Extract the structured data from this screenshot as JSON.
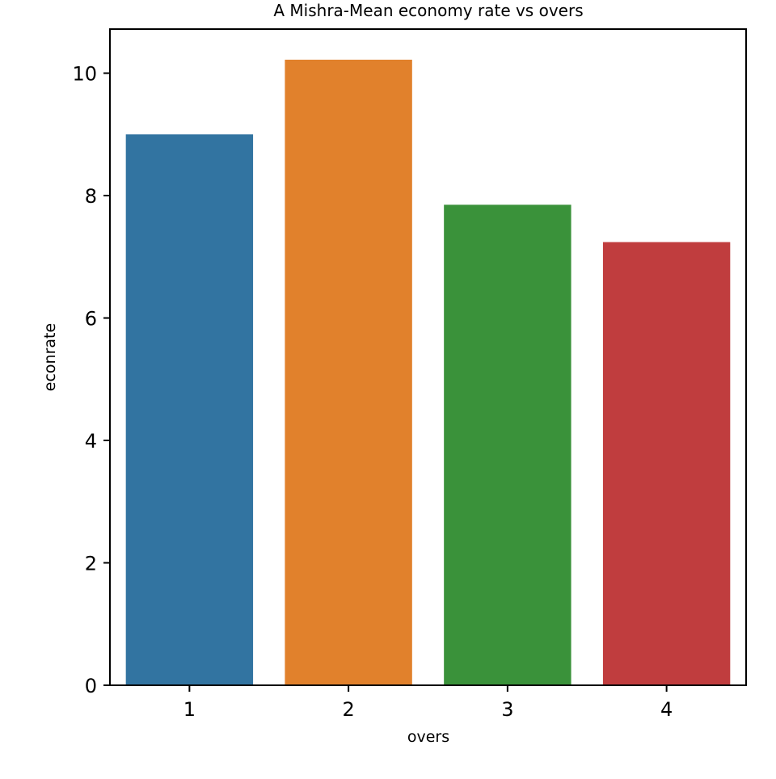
{
  "chart_data": {
    "type": "bar",
    "title": "A Mishra-Mean economy rate vs overs",
    "xlabel": "overs",
    "ylabel": "econrate",
    "categories": [
      "1",
      "2",
      "3",
      "4"
    ],
    "values": [
      9.0,
      10.22,
      7.85,
      7.24
    ],
    "colors": [
      "#3274a1",
      "#e1812c",
      "#3a923a",
      "#c03d3e"
    ],
    "ylim": [
      0,
      10.72
    ],
    "yticks": [
      0,
      2,
      4,
      6,
      8,
      10
    ],
    "grid": false,
    "legend": "none"
  }
}
